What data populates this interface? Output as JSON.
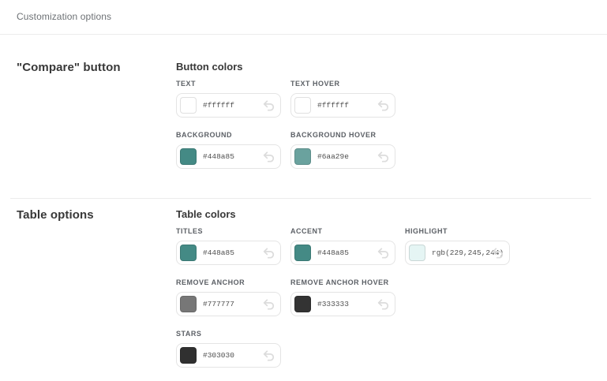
{
  "page": {
    "subtitle": "Customization options"
  },
  "sections": [
    {
      "title": "\"Compare\" button",
      "group_title": "Button colors",
      "rows": [
        [
          {
            "label": "TEXT",
            "value": "#ffffff",
            "swatch": "#ffffff"
          },
          {
            "label": "TEXT HOVER",
            "value": "#ffffff",
            "swatch": "#ffffff"
          }
        ],
        [
          {
            "label": "BACKGROUND",
            "value": "#448a85",
            "swatch": "#448a85"
          },
          {
            "label": "BACKGROUND HOVER",
            "value": "#6aa29e",
            "swatch": "#6aa29e"
          }
        ]
      ]
    },
    {
      "title": "Table options",
      "group_title": "Table colors",
      "rows": [
        [
          {
            "label": "TITLES",
            "value": "#448a85",
            "swatch": "#448a85"
          },
          {
            "label": "ACCENT",
            "value": "#448a85",
            "swatch": "#448a85"
          },
          {
            "label": "HIGHLIGHT",
            "value": "rgb(229,245,244)",
            "swatch": "rgb(229,245,244)"
          }
        ],
        [
          {
            "label": "REMOVE ANCHOR",
            "value": "#777777",
            "swatch": "#777777"
          },
          {
            "label": "REMOVE ANCHOR HOVER",
            "value": "#333333",
            "swatch": "#333333"
          }
        ],
        [
          {
            "label": "STARS",
            "value": "#303030",
            "swatch": "#303030"
          }
        ]
      ]
    }
  ],
  "icons": {
    "reset_icon_color": "#dcdcdc"
  }
}
